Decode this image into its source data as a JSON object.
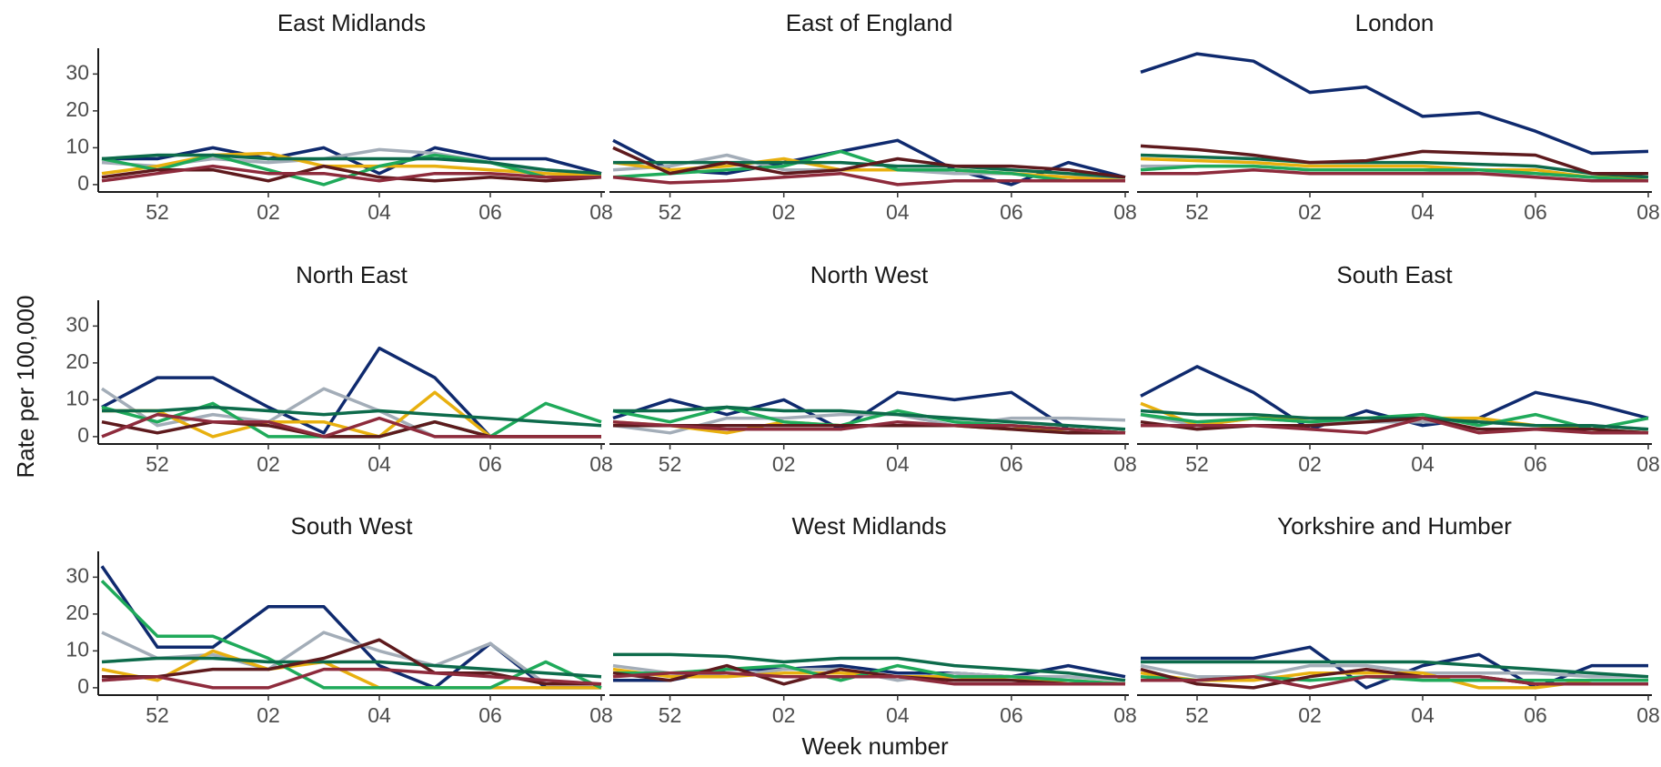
{
  "chart_data": {
    "type": "line",
    "x_label": "Week number",
    "y_label": "Rate per 100,000",
    "categories": [
      null,
      "52",
      null,
      "02",
      null,
      "04",
      null,
      "06",
      null,
      "08"
    ],
    "ylim": [
      -2,
      37
    ],
    "yticks": [
      0,
      10,
      20,
      30
    ],
    "panels": [
      {
        "title": "East Midlands",
        "series": [
          {
            "color": "#0f2a6e",
            "values": [
              7,
              7,
              10,
              7,
              10,
              3,
              10,
              7,
              7,
              3
            ]
          },
          {
            "color": "#a3adb8",
            "values": [
              6,
              5,
              7,
              6,
              7,
              9.5,
              8.5,
              6,
              3,
              2
            ]
          },
          {
            "color": "#e8b00f",
            "values": [
              3,
              5,
              8,
              8.5,
              5,
              5,
              5,
              4,
              3,
              2.5
            ]
          },
          {
            "color": "#1faa5a",
            "values": [
              7,
              4,
              8,
              4,
              0,
              5,
              8,
              6,
              2,
              2
            ]
          },
          {
            "color": "#0d6b4b",
            "values": [
              7,
              8,
              8,
              7,
              7,
              7,
              7,
              6,
              4,
              3
            ]
          },
          {
            "color": "#5e1a1d",
            "values": [
              2,
              4,
              4,
              1,
              5,
              2,
              1,
              2,
              1,
              2
            ]
          },
          {
            "color": "#8e2b3c",
            "values": [
              1,
              3,
              5,
              3,
              3,
              1,
              3,
              3,
              2,
              2
            ]
          }
        ]
      },
      {
        "title": "East of England",
        "series": [
          {
            "color": "#0f2a6e",
            "values": [
              12,
              4,
              3,
              6,
              9,
              12,
              4,
              0,
              6,
              2
            ]
          },
          {
            "color": "#a3adb8",
            "values": [
              4,
              5,
              8,
              4,
              4,
              4,
              3,
              3,
              2,
              2
            ]
          },
          {
            "color": "#e8b00f",
            "values": [
              6,
              4,
              5,
              7,
              4,
              4,
              4,
              3,
              2,
              1
            ]
          },
          {
            "color": "#1faa5a",
            "values": [
              2,
              3,
              4,
              5,
              9,
              4,
              4,
              3,
              1,
              1
            ]
          },
          {
            "color": "#0d6b4b",
            "values": [
              6,
              6,
              6,
              6,
              6,
              5,
              5,
              4,
              3,
              2
            ]
          },
          {
            "color": "#5e1a1d",
            "values": [
              10,
              3,
              6,
              3,
              4,
              7,
              5,
              5,
              4,
              2
            ]
          },
          {
            "color": "#8e2b3c",
            "values": [
              2,
              0.5,
              1,
              2,
              3,
              0,
              1,
              1,
              1,
              1
            ]
          }
        ]
      },
      {
        "title": "London",
        "series": [
          {
            "color": "#0f2a6e",
            "values": [
              30.5,
              35.5,
              33.5,
              25,
              26.5,
              18.5,
              19.5,
              14.5,
              8.5,
              9
            ]
          },
          {
            "color": "#a3adb8",
            "values": [
              5,
              5,
              5,
              4,
              4,
              4,
              3,
              3,
              2,
              2
            ]
          },
          {
            "color": "#e8b00f",
            "values": [
              7,
              6.5,
              6,
              5,
              5,
              5,
              4,
              4,
              2,
              2
            ]
          },
          {
            "color": "#1faa5a",
            "values": [
              4,
              5,
              5,
              4,
              4,
              4,
              4,
              3,
              2,
              1
            ]
          },
          {
            "color": "#0d6b4b",
            "values": [
              8,
              7.5,
              7,
              6,
              6,
              6,
              5.5,
              5,
              3,
              2
            ]
          },
          {
            "color": "#5e1a1d",
            "values": [
              10.5,
              9.5,
              8,
              6,
              6.5,
              9,
              8.5,
              8,
              3,
              3
            ]
          },
          {
            "color": "#8e2b3c",
            "values": [
              3,
              3,
              4,
              3,
              3,
              3,
              3,
              2,
              1,
              1
            ]
          }
        ]
      },
      {
        "title": "North East",
        "series": [
          {
            "color": "#0f2a6e",
            "values": [
              8,
              16,
              16,
              8,
              1,
              24,
              16,
              0,
              0,
              0
            ]
          },
          {
            "color": "#a3adb8",
            "values": [
              13,
              3,
              6,
              4,
              13,
              7,
              0,
              0,
              0,
              0
            ]
          },
          {
            "color": "#e8b00f",
            "values": [
              7,
              7,
              0,
              4,
              4,
              0,
              12,
              0,
              0,
              0
            ]
          },
          {
            "color": "#1faa5a",
            "values": [
              8,
              4,
              9,
              0,
              0,
              0,
              4,
              0,
              9,
              4
            ]
          },
          {
            "color": "#0d6b4b",
            "values": [
              7,
              7,
              8,
              7,
              6,
              7,
              6,
              5,
              4,
              3
            ]
          },
          {
            "color": "#5e1a1d",
            "values": [
              4,
              1,
              4,
              3,
              0,
              0,
              4,
              0,
              0,
              0
            ]
          },
          {
            "color": "#8e2b3c",
            "values": [
              0,
              6,
              4,
              4,
              0,
              5,
              0,
              0,
              0,
              0
            ]
          }
        ]
      },
      {
        "title": "North West",
        "series": [
          {
            "color": "#0f2a6e",
            "values": [
              5,
              10,
              6,
              10,
              2,
              12,
              10,
              12,
              2,
              1
            ]
          },
          {
            "color": "#a3adb8",
            "values": [
              3,
              1,
              5,
              5,
              6,
              6,
              3,
              5,
              5,
              4.5
            ]
          },
          {
            "color": "#e8b00f",
            "values": [
              4,
              3,
              1,
              4,
              3,
              3,
              3,
              2,
              2,
              1
            ]
          },
          {
            "color": "#1faa5a",
            "values": [
              7,
              4,
              8,
              4,
              3,
              7,
              4,
              3,
              2,
              1
            ]
          },
          {
            "color": "#0d6b4b",
            "values": [
              7,
              7,
              8,
              7,
              7,
              6,
              5,
              4,
              3,
              2
            ]
          },
          {
            "color": "#5e1a1d",
            "values": [
              3,
              3,
              3,
              3,
              3,
              3,
              3,
              2,
              1,
              1
            ]
          },
          {
            "color": "#8e2b3c",
            "values": [
              4,
              3,
              2,
              2,
              2,
              4,
              3,
              3,
              2,
              1
            ]
          }
        ]
      },
      {
        "title": "South East",
        "series": [
          {
            "color": "#0f2a6e",
            "values": [
              11,
              19,
              12,
              2,
              7,
              3,
              5,
              12,
              9,
              5
            ]
          },
          {
            "color": "#a3adb8",
            "values": [
              6,
              3,
              5,
              4,
              4,
              4,
              4,
              3,
              3,
              2
            ]
          },
          {
            "color": "#e8b00f",
            "values": [
              9,
              3,
              5,
              5,
              5,
              5,
              5,
              3,
              2,
              1
            ]
          },
          {
            "color": "#1faa5a",
            "values": [
              6,
              4,
              5,
              4,
              5,
              6,
              3,
              6,
              2,
              5
            ]
          },
          {
            "color": "#0d6b4b",
            "values": [
              7,
              6,
              6,
              5,
              5,
              5,
              4,
              3,
              3,
              2
            ]
          },
          {
            "color": "#5e1a1d",
            "values": [
              4,
              2,
              3,
              3,
              4,
              5,
              2,
              2,
              2,
              1
            ]
          },
          {
            "color": "#8e2b3c",
            "values": [
              3,
              3,
              3,
              2,
              1,
              5,
              1,
              2,
              1,
              1
            ]
          }
        ]
      },
      {
        "title": "South West",
        "series": [
          {
            "color": "#0f2a6e",
            "values": [
              33,
              11,
              11,
              22,
              22,
              6,
              0,
              12,
              0,
              0
            ]
          },
          {
            "color": "#a3adb8",
            "values": [
              15,
              8,
              9,
              5,
              15,
              10,
              6,
              12,
              1,
              1
            ]
          },
          {
            "color": "#e8b00f",
            "values": [
              5,
              2,
              10,
              5,
              7,
              0,
              0,
              0,
              0,
              0
            ]
          },
          {
            "color": "#1faa5a",
            "values": [
              29,
              14,
              14,
              8,
              0,
              0,
              0,
              0,
              7,
              0
            ]
          },
          {
            "color": "#0d6b4b",
            "values": [
              7,
              8,
              8,
              7,
              7,
              7,
              6,
              5,
              4,
              3
            ]
          },
          {
            "color": "#5e1a1d",
            "values": [
              3,
              3,
              5,
              5,
              8,
              13,
              4,
              4,
              1,
              1
            ]
          },
          {
            "color": "#8e2b3c",
            "values": [
              2,
              3,
              0,
              0,
              5,
              5,
              4,
              3,
              2,
              1
            ]
          }
        ]
      },
      {
        "title": "West Midlands",
        "series": [
          {
            "color": "#0f2a6e",
            "values": [
              2,
              2,
              5,
              5,
              6,
              4,
              4,
              3,
              6,
              3
            ]
          },
          {
            "color": "#a3adb8",
            "values": [
              6,
              4,
              3,
              5,
              5,
              2,
              4,
              3,
              3,
              2
            ]
          },
          {
            "color": "#e8b00f",
            "values": [
              5,
              3,
              3,
              4,
              4,
              3,
              3,
              2,
              2,
              1
            ]
          },
          {
            "color": "#1faa5a",
            "values": [
              4,
              4,
              5,
              6,
              2,
              6,
              3,
              3,
              2,
              1
            ]
          },
          {
            "color": "#0d6b4b",
            "values": [
              9,
              9,
              8.5,
              7,
              8,
              8,
              6,
              5,
              4,
              2
            ]
          },
          {
            "color": "#5e1a1d",
            "values": [
              4,
              2,
              6,
              1,
              5,
              3,
              2,
              2,
              1,
              1
            ]
          },
          {
            "color": "#8e2b3c",
            "values": [
              3,
              4,
              4,
              3,
              3,
              3,
              1,
              1,
              1,
              1
            ]
          }
        ]
      },
      {
        "title": "Yorkshire and Humber",
        "series": [
          {
            "color": "#0f2a6e",
            "values": [
              8,
              8,
              8,
              11,
              0,
              6,
              9,
              0,
              6,
              6
            ]
          },
          {
            "color": "#a3adb8",
            "values": [
              6,
              3,
              3,
              6,
              6,
              4,
              4,
              4,
              3,
              3
            ]
          },
          {
            "color": "#e8b00f",
            "values": [
              4,
              2,
              2,
              4,
              4,
              4,
              0,
              0,
              2,
              2
            ]
          },
          {
            "color": "#1faa5a",
            "values": [
              3,
              2,
              3,
              2,
              3,
              2,
              2,
              2,
              2,
              2
            ]
          },
          {
            "color": "#0d6b4b",
            "values": [
              7,
              7,
              7,
              7,
              7,
              7,
              6,
              5,
              4,
              3
            ]
          },
          {
            "color": "#5e1a1d",
            "values": [
              5,
              1,
              0,
              3,
              5,
              3,
              3,
              1,
              1,
              1
            ]
          },
          {
            "color": "#8e2b3c",
            "values": [
              2,
              2,
              3,
              0,
              3,
              3,
              3,
              1,
              1,
              1
            ]
          }
        ]
      }
    ]
  }
}
